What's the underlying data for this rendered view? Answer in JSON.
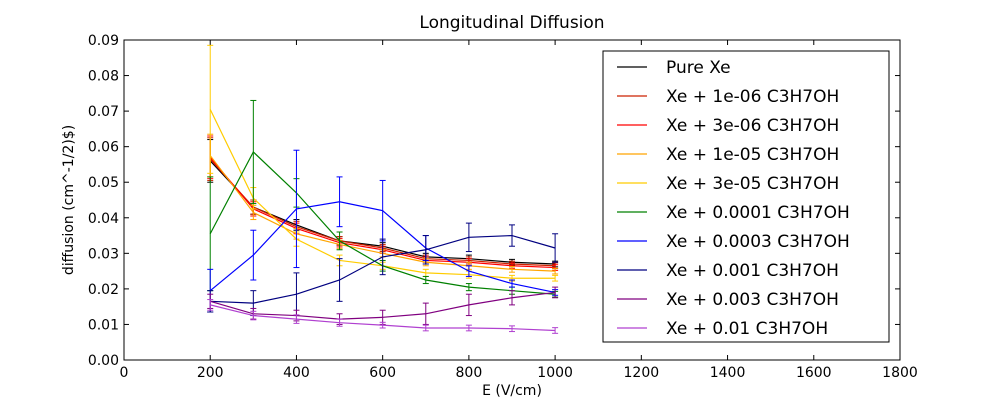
{
  "chart_data": {
    "type": "line",
    "title": "Longitudinal Diffusion",
    "xlabel": "E (V/cm)",
    "ylabel": "diffusion (cm^-1/2)$)",
    "xlim": [
      0,
      1800
    ],
    "ylim": [
      0,
      0.09
    ],
    "xticks": [
      0,
      200,
      400,
      600,
      800,
      1000,
      1200,
      1400,
      1600,
      1800
    ],
    "xtick_labels": [
      "0",
      "200",
      "400",
      "600",
      "800",
      "1000",
      "1200",
      "1400",
      "1600",
      "1800"
    ],
    "yticks": [
      0,
      0.01,
      0.02,
      0.03,
      0.04,
      0.05,
      0.06,
      0.07,
      0.08,
      0.09
    ],
    "ytick_labels": [
      "0.00",
      "0.01",
      "0.02",
      "0.03",
      "0.04",
      "0.05",
      "0.06",
      "0.07",
      "0.08",
      "0.09"
    ],
    "grid": false,
    "legend_position": "top-right",
    "x": [
      200,
      300,
      400,
      500,
      600,
      700,
      800,
      900,
      1000
    ],
    "series": [
      {
        "name": "Pure Xe",
        "color": "#000000",
        "values": [
          0.056,
          0.043,
          0.038,
          0.0335,
          0.032,
          0.029,
          0.0285,
          0.0275,
          0.027
        ],
        "errors": [
          0.006,
          0.002,
          0.0015,
          0.0012,
          0.001,
          0.001,
          0.001,
          0.0008,
          0.0008
        ]
      },
      {
        "name": "Xe + 1e-06 C3H7OH",
        "color": "#cc2200",
        "values": [
          0.0565,
          0.043,
          0.0375,
          0.0335,
          0.0315,
          0.0285,
          0.028,
          0.027,
          0.0265
        ],
        "errors": [
          0.006,
          0.002,
          0.0015,
          0.0012,
          0.001,
          0.001,
          0.001,
          0.0008,
          0.0008
        ]
      },
      {
        "name": "Xe + 3e-06 C3H7OH",
        "color": "#ff0000",
        "values": [
          0.057,
          0.0425,
          0.037,
          0.033,
          0.031,
          0.028,
          0.0275,
          0.0265,
          0.026
        ],
        "errors": [
          0.006,
          0.002,
          0.0015,
          0.0012,
          0.001,
          0.001,
          0.001,
          0.0008,
          0.0008
        ]
      },
      {
        "name": "Xe + 1e-05 C3H7OH",
        "color": "#ffa500",
        "values": [
          0.0575,
          0.0415,
          0.0355,
          0.0325,
          0.03,
          0.0275,
          0.0265,
          0.0255,
          0.025
        ],
        "errors": [
          0.006,
          0.002,
          0.0015,
          0.0012,
          0.001,
          0.001,
          0.001,
          0.0008,
          0.0008
        ]
      },
      {
        "name": "Xe + 3e-05 C3H7OH",
        "color": "#ffcc00",
        "values": [
          0.0705,
          0.0455,
          0.034,
          0.028,
          0.0265,
          0.0245,
          0.024,
          0.023,
          0.023
        ],
        "errors": [
          0.018,
          0.003,
          0.002,
          0.0015,
          0.001,
          0.001,
          0.001,
          0.0008,
          0.0008
        ]
      },
      {
        "name": "Xe + 0.0001 C3H7OH",
        "color": "#008000",
        "values": [
          0.0355,
          0.0585,
          0.047,
          0.0335,
          0.0265,
          0.0225,
          0.0205,
          0.0195,
          0.0185
        ],
        "errors": [
          0.016,
          0.0145,
          0.004,
          0.0025,
          0.0015,
          0.001,
          0.001,
          0.001,
          0.0008
        ]
      },
      {
        "name": "Xe + 0.0003 C3H7OH",
        "color": "#0000ff",
        "values": [
          0.0195,
          0.0295,
          0.0425,
          0.0445,
          0.042,
          0.0315,
          0.025,
          0.0215,
          0.019
        ],
        "errors": [
          0.006,
          0.007,
          0.0165,
          0.007,
          0.0085,
          0.0035,
          0.0015,
          0.001,
          0.0008
        ]
      },
      {
        "name": "Xe + 0.001 C3H7OH",
        "color": "#000080",
        "values": [
          0.0165,
          0.016,
          0.0185,
          0.0225,
          0.029,
          0.031,
          0.0345,
          0.035,
          0.0315
        ],
        "errors": [
          0.003,
          0.0035,
          0.006,
          0.006,
          0.005,
          0.004,
          0.004,
          0.003,
          0.004
        ]
      },
      {
        "name": "Xe + 0.003 C3H7OH",
        "color": "#800080",
        "values": [
          0.0165,
          0.013,
          0.0125,
          0.0115,
          0.012,
          0.013,
          0.0155,
          0.0175,
          0.019
        ],
        "errors": [
          0.002,
          0.0015,
          0.0015,
          0.0015,
          0.002,
          0.003,
          0.003,
          0.002,
          0.0015
        ]
      },
      {
        "name": "Xe + 0.01 C3H7OH",
        "color": "#b040d0",
        "values": [
          0.0155,
          0.0125,
          0.0115,
          0.0105,
          0.0098,
          0.009,
          0.009,
          0.0088,
          0.0083
        ],
        "errors": [
          0.0015,
          0.0012,
          0.0012,
          0.001,
          0.0008,
          0.0008,
          0.0008,
          0.0008,
          0.0008
        ]
      }
    ]
  }
}
